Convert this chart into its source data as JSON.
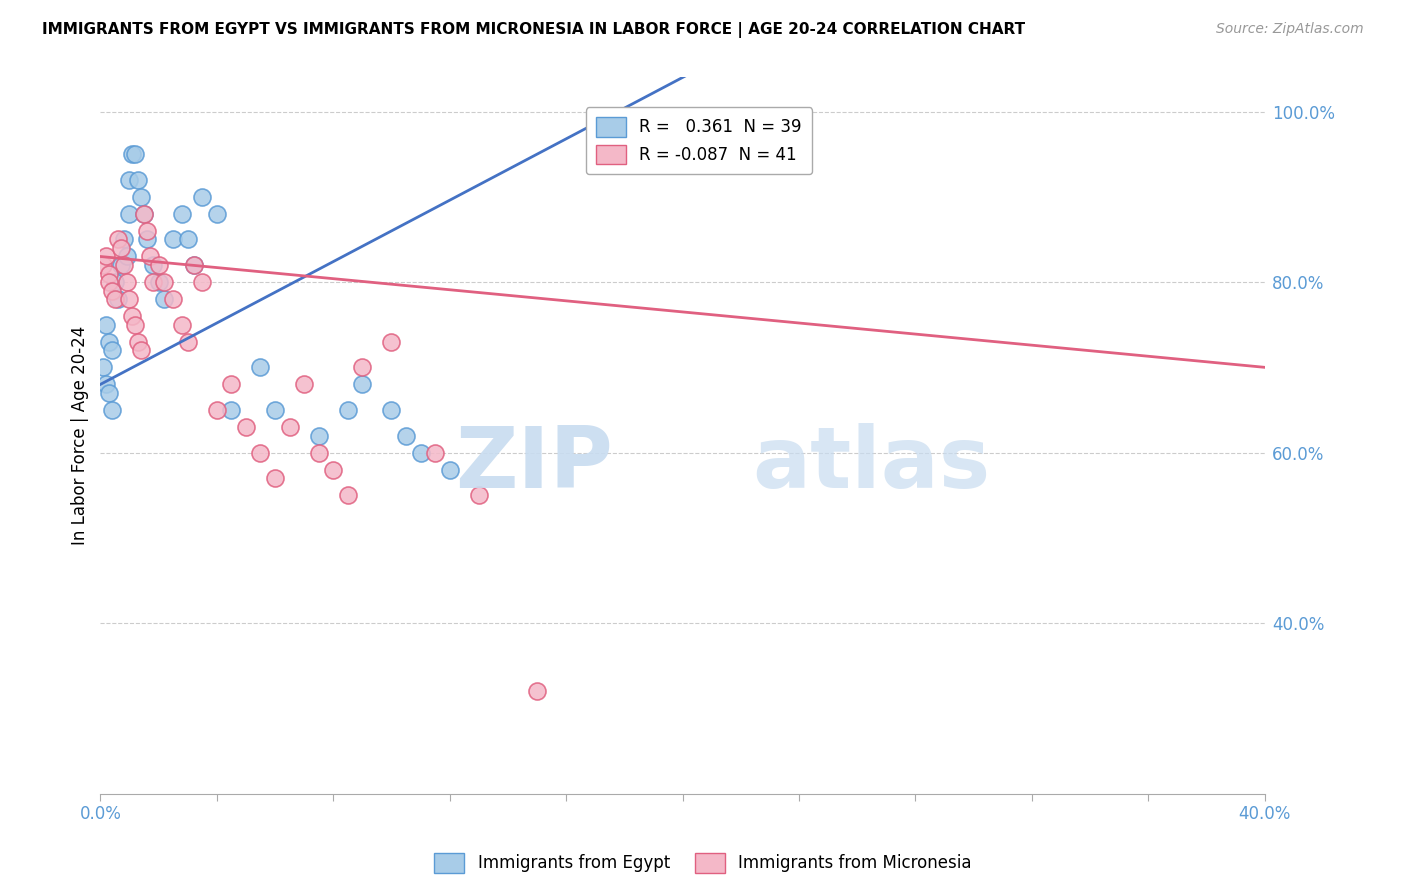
{
  "title": "IMMIGRANTS FROM EGYPT VS IMMIGRANTS FROM MICRONESIA IN LABOR FORCE | AGE 20-24 CORRELATION CHART",
  "source": "Source: ZipAtlas.com",
  "ylabel": "In Labor Force | Age 20-24",
  "xmin": 0.0,
  "xmax": 0.4,
  "ymin": 0.2,
  "ymax": 1.04,
  "legend_r1": "R =   0.361  N = 39",
  "legend_r2": "R = -0.087  N = 41",
  "egypt_color": "#A8CCE8",
  "egypt_edge_color": "#5B9BD5",
  "micronesia_color": "#F4B8C8",
  "micronesia_edge_color": "#E06080",
  "egypt_line_color": "#4472C4",
  "micronesia_line_color": "#E06080",
  "watermark_zip_color": "#C8DCF0",
  "watermark_atlas_color": "#C8DCF0",
  "ytick_vals": [
    0.4,
    0.6,
    0.8,
    1.0
  ],
  "egypt_x": [
    0.001,
    0.002,
    0.002,
    0.003,
    0.003,
    0.004,
    0.004,
    0.005,
    0.006,
    0.007,
    0.008,
    0.009,
    0.01,
    0.01,
    0.011,
    0.012,
    0.013,
    0.014,
    0.015,
    0.016,
    0.018,
    0.02,
    0.022,
    0.025,
    0.028,
    0.03,
    0.032,
    0.035,
    0.04,
    0.045,
    0.055,
    0.06,
    0.075,
    0.085,
    0.09,
    0.1,
    0.105,
    0.11,
    0.12
  ],
  "egypt_y": [
    0.7,
    0.68,
    0.75,
    0.67,
    0.73,
    0.65,
    0.72,
    0.8,
    0.78,
    0.82,
    0.85,
    0.83,
    0.88,
    0.92,
    0.95,
    0.95,
    0.92,
    0.9,
    0.88,
    0.85,
    0.82,
    0.8,
    0.78,
    0.85,
    0.88,
    0.85,
    0.82,
    0.9,
    0.88,
    0.65,
    0.7,
    0.65,
    0.62,
    0.65,
    0.68,
    0.65,
    0.62,
    0.6,
    0.58
  ],
  "micronesia_x": [
    0.001,
    0.002,
    0.003,
    0.003,
    0.004,
    0.005,
    0.006,
    0.007,
    0.008,
    0.009,
    0.01,
    0.011,
    0.012,
    0.013,
    0.014,
    0.015,
    0.016,
    0.017,
    0.018,
    0.02,
    0.022,
    0.025,
    0.028,
    0.03,
    0.032,
    0.035,
    0.04,
    0.045,
    0.05,
    0.055,
    0.06,
    0.065,
    0.07,
    0.075,
    0.08,
    0.085,
    0.09,
    0.1,
    0.115,
    0.13,
    0.15
  ],
  "micronesia_y": [
    0.82,
    0.83,
    0.81,
    0.8,
    0.79,
    0.78,
    0.85,
    0.84,
    0.82,
    0.8,
    0.78,
    0.76,
    0.75,
    0.73,
    0.72,
    0.88,
    0.86,
    0.83,
    0.8,
    0.82,
    0.8,
    0.78,
    0.75,
    0.73,
    0.82,
    0.8,
    0.65,
    0.68,
    0.63,
    0.6,
    0.57,
    0.63,
    0.68,
    0.6,
    0.58,
    0.55,
    0.7,
    0.73,
    0.6,
    0.55,
    0.32
  ]
}
